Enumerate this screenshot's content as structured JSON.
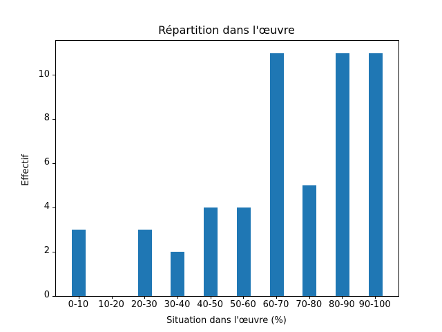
{
  "figure": {
    "background": "#ffffff",
    "axes_box_color": "#000000"
  },
  "chart_data": {
    "type": "bar",
    "title": "Répartition dans l'œuvre",
    "xlabel": "Situation dans l'œuvre (%)",
    "ylabel": "Effectif",
    "categories": [
      "0-10",
      "10-20",
      "20-30",
      "30-40",
      "40-50",
      "50-60",
      "60-70",
      "70-80",
      "80-90",
      "90-100"
    ],
    "values": [
      3,
      0,
      3,
      2,
      4,
      4,
      11,
      5,
      11,
      11
    ],
    "yticks": [
      0,
      2,
      4,
      6,
      8,
      10
    ],
    "ylim": [
      0,
      11.55
    ],
    "bar_color": "#1f77b4",
    "grid": false,
    "legend_position": "none"
  }
}
